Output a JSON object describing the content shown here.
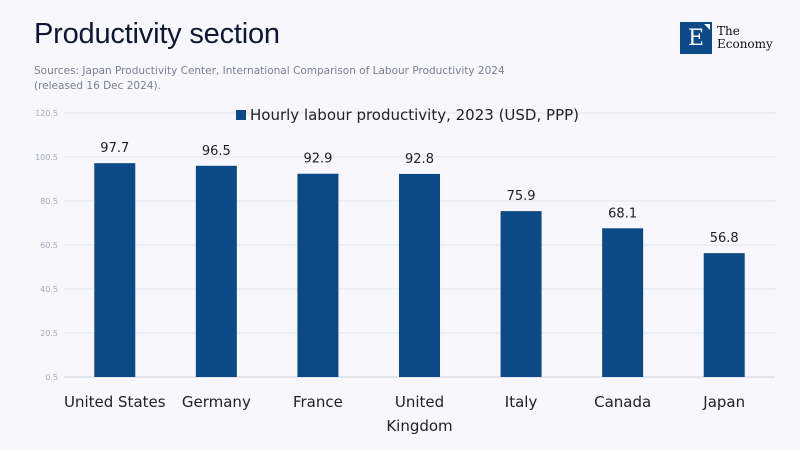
{
  "header": {
    "title": "Productivity section",
    "sources_line1": "Sources:  Japan Productivity Center, International Comparison of Labour Productivity 2024",
    "sources_line2": "(released 16 Dec 2024)."
  },
  "logo": {
    "letter": "E",
    "line1": "The",
    "line2": "Economy",
    "color": "#0c4a87"
  },
  "chart_data": {
    "type": "bar",
    "title": "",
    "xlabel": "",
    "ylabel": "",
    "categories": [
      "United States",
      "Germany",
      "France",
      "United Kingdom",
      "Italy",
      "Canada",
      "Japan"
    ],
    "category_label_lines": [
      [
        "United States"
      ],
      [
        "Germany"
      ],
      [
        "France"
      ],
      [
        "United",
        "Kingdom"
      ],
      [
        "Italy"
      ],
      [
        "Canada"
      ],
      [
        "Japan"
      ]
    ],
    "series": [
      {
        "name": "Hourly labour productivity, 2023 (USD, PPP)",
        "values": [
          97.7,
          96.5,
          92.9,
          92.8,
          75.9,
          68.1,
          56.8
        ],
        "color": "#0c4a87"
      }
    ],
    "data_labels": [
      "97.7",
      "96.5",
      "92.9",
      "92.8",
      "75.9",
      "68.1",
      "56.8"
    ],
    "yticks": [
      0.5,
      20.5,
      40.5,
      60.5,
      80.5,
      100.5,
      120.5
    ],
    "ytick_labels": [
      "0.5",
      "20.5",
      "40.5",
      "60.5",
      "80.5",
      "100.5",
      "120.5"
    ],
    "ylim": [
      0.5,
      120.5
    ],
    "grid": true,
    "legend_position": "top-center"
  }
}
